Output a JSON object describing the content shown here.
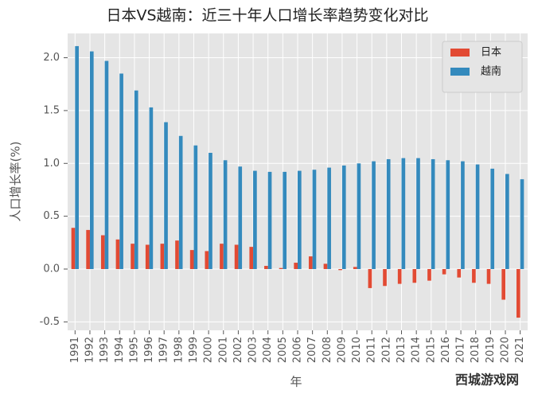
{
  "chart_data": {
    "type": "bar",
    "title": "日本VS越南：近三十年人口增长率趋势变化对比",
    "xlabel": "年",
    "ylabel": "人口增长率(%)",
    "categories": [
      "1991",
      "1992",
      "1993",
      "1994",
      "1995",
      "1996",
      "1997",
      "1998",
      "1999",
      "2000",
      "2001",
      "2002",
      "2003",
      "2004",
      "2005",
      "2006",
      "2007",
      "2008",
      "2009",
      "2010",
      "2011",
      "2012",
      "2013",
      "2014",
      "2015",
      "2016",
      "2017",
      "2018",
      "2019",
      "2020",
      "2021"
    ],
    "series": [
      {
        "name": "日本",
        "color": "#E24A33",
        "values": [
          0.39,
          0.37,
          0.32,
          0.28,
          0.24,
          0.23,
          0.24,
          0.27,
          0.18,
          0.17,
          0.24,
          0.23,
          0.21,
          0.03,
          0.01,
          0.06,
          0.12,
          0.05,
          -0.01,
          0.02,
          -0.18,
          -0.16,
          -0.14,
          -0.13,
          -0.11,
          -0.05,
          -0.08,
          -0.13,
          -0.14,
          -0.29,
          -0.46
        ]
      },
      {
        "name": "越南",
        "color": "#348ABD",
        "values": [
          2.11,
          2.06,
          1.97,
          1.85,
          1.69,
          1.53,
          1.39,
          1.26,
          1.17,
          1.1,
          1.03,
          0.97,
          0.93,
          0.92,
          0.92,
          0.93,
          0.94,
          0.96,
          0.98,
          1.0,
          1.02,
          1.04,
          1.05,
          1.05,
          1.04,
          1.03,
          1.02,
          0.99,
          0.95,
          0.9,
          0.85
        ]
      }
    ],
    "ylim": [
      -0.58,
      2.23
    ],
    "yticks": [
      -0.5,
      {
        "value": 0,
        "label": "0.0"
      },
      0.5,
      {
        "value": 1,
        "label": "1.0"
      },
      1.5,
      {
        "value": 2,
        "label": "2.0"
      }
    ],
    "grid": true,
    "legend": "upper-right",
    "watermark": "西城游戏网"
  }
}
